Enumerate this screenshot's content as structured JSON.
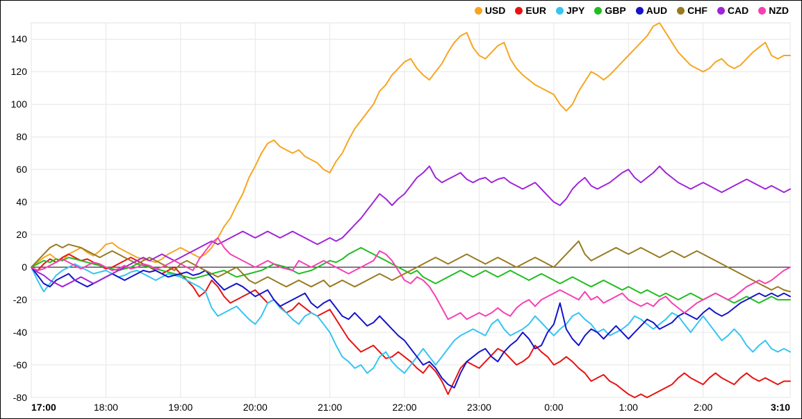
{
  "chart": {
    "type": "line",
    "background_color": "#ffffff",
    "frame_border_color": "#000000",
    "plot_border_color": "#e0e0e0",
    "grid_color": "#e6e6e6",
    "zero_line_color": "#000000",
    "tick_font_size": 14,
    "legend_font_size": 14,
    "line_width": 2,
    "y": {
      "min": -80,
      "max": 150,
      "ticks": [
        -80,
        -60,
        -40,
        -20,
        0,
        20,
        40,
        60,
        80,
        100,
        120,
        140
      ]
    },
    "x": {
      "min_minutes": 1020,
      "max_minutes": 1630,
      "ticks": [
        {
          "minutes": 1020,
          "label": "17:00",
          "bold": true
        },
        {
          "minutes": 1080,
          "label": "18:00",
          "bold": false
        },
        {
          "minutes": 1140,
          "label": "19:00",
          "bold": false
        },
        {
          "minutes": 1200,
          "label": "20:00",
          "bold": false
        },
        {
          "minutes": 1260,
          "label": "21:00",
          "bold": false
        },
        {
          "minutes": 1320,
          "label": "22:00",
          "bold": false
        },
        {
          "minutes": 1380,
          "label": "23:00",
          "bold": false
        },
        {
          "minutes": 1440,
          "label": "0:00",
          "bold": false
        },
        {
          "minutes": 1500,
          "label": "1:00",
          "bold": false
        },
        {
          "minutes": 1560,
          "label": "2:00",
          "bold": false
        },
        {
          "minutes": 1630,
          "label": "3:10",
          "bold": true
        }
      ]
    },
    "x_values_minutes": [
      1020,
      1025,
      1030,
      1035,
      1040,
      1045,
      1050,
      1055,
      1060,
      1065,
      1070,
      1075,
      1080,
      1085,
      1090,
      1095,
      1100,
      1105,
      1110,
      1115,
      1120,
      1125,
      1130,
      1135,
      1140,
      1145,
      1150,
      1155,
      1160,
      1165,
      1170,
      1175,
      1180,
      1185,
      1190,
      1195,
      1200,
      1205,
      1210,
      1215,
      1220,
      1225,
      1230,
      1235,
      1240,
      1245,
      1250,
      1255,
      1260,
      1265,
      1270,
      1275,
      1280,
      1285,
      1290,
      1295,
      1300,
      1305,
      1310,
      1315,
      1320,
      1325,
      1330,
      1335,
      1340,
      1345,
      1350,
      1355,
      1360,
      1365,
      1370,
      1375,
      1380,
      1385,
      1390,
      1395,
      1400,
      1405,
      1410,
      1415,
      1420,
      1425,
      1430,
      1435,
      1440,
      1445,
      1450,
      1455,
      1460,
      1465,
      1470,
      1475,
      1480,
      1485,
      1490,
      1495,
      1500,
      1505,
      1510,
      1515,
      1520,
      1525,
      1530,
      1535,
      1540,
      1545,
      1550,
      1555,
      1560,
      1565,
      1570,
      1575,
      1580,
      1585,
      1590,
      1595,
      1600,
      1605,
      1610,
      1615,
      1620,
      1625,
      1630
    ],
    "series": [
      {
        "label": "USD",
        "color": "#f7a520",
        "values": [
          0,
          3,
          6,
          8,
          5,
          4,
          8,
          10,
          12,
          9,
          7,
          10,
          14,
          15,
          12,
          10,
          8,
          6,
          5,
          4,
          3,
          5,
          8,
          10,
          12,
          10,
          8,
          6,
          8,
          12,
          18,
          25,
          30,
          38,
          45,
          55,
          62,
          70,
          76,
          78,
          74,
          72,
          70,
          72,
          68,
          66,
          64,
          60,
          58,
          65,
          70,
          78,
          85,
          90,
          95,
          100,
          108,
          112,
          118,
          122,
          126,
          128,
          122,
          118,
          115,
          120,
          125,
          132,
          138,
          142,
          144,
          135,
          130,
          128,
          132,
          136,
          138,
          128,
          122,
          118,
          115,
          112,
          110,
          108,
          106,
          100,
          96,
          100,
          108,
          114,
          120,
          118,
          115,
          118,
          122,
          126,
          130,
          134,
          138,
          142,
          148,
          150,
          144,
          138,
          132,
          128,
          124,
          122,
          120,
          122,
          126,
          128,
          124,
          122,
          124,
          128,
          132,
          135,
          138,
          130,
          128,
          130,
          130
        ]
      },
      {
        "label": "EUR",
        "color": "#e81212",
        "values": [
          0,
          -2,
          2,
          5,
          3,
          6,
          8,
          6,
          4,
          5,
          3,
          1,
          -1,
          0,
          2,
          4,
          6,
          4,
          2,
          0,
          -2,
          -4,
          -2,
          0,
          -4,
          -8,
          -12,
          -18,
          -15,
          -8,
          -12,
          -18,
          -22,
          -20,
          -18,
          -16,
          -14,
          -18,
          -22,
          -20,
          -24,
          -28,
          -26,
          -22,
          -25,
          -28,
          -30,
          -28,
          -26,
          -32,
          -38,
          -44,
          -48,
          -52,
          -50,
          -48,
          -52,
          -56,
          -55,
          -52,
          -55,
          -58,
          -62,
          -65,
          -60,
          -64,
          -70,
          -78,
          -70,
          -62,
          -58,
          -60,
          -62,
          -58,
          -54,
          -50,
          -52,
          -56,
          -60,
          -58,
          -55,
          -48,
          -52,
          -55,
          -60,
          -58,
          -55,
          -58,
          -62,
          -65,
          -70,
          -68,
          -66,
          -70,
          -72,
          -75,
          -78,
          -80,
          -78,
          -80,
          -78,
          -76,
          -74,
          -72,
          -68,
          -65,
          -68,
          -70,
          -72,
          -68,
          -65,
          -68,
          -70,
          -72,
          -68,
          -65,
          -68,
          -70,
          -68,
          -70,
          -72,
          -70,
          -70
        ]
      },
      {
        "label": "JPY",
        "color": "#35c4f3",
        "values": [
          0,
          -8,
          -15,
          -10,
          -5,
          -2,
          0,
          2,
          0,
          -2,
          -4,
          -3,
          -2,
          -4,
          -6,
          -5,
          -3,
          -2,
          -4,
          -6,
          -8,
          -6,
          -4,
          -5,
          -6,
          -8,
          -10,
          -12,
          -15,
          -25,
          -30,
          -28,
          -26,
          -24,
          -28,
          -32,
          -35,
          -30,
          -22,
          -20,
          -25,
          -28,
          -32,
          -35,
          -30,
          -28,
          -30,
          -35,
          -40,
          -48,
          -55,
          -58,
          -62,
          -60,
          -65,
          -62,
          -55,
          -52,
          -58,
          -62,
          -65,
          -60,
          -55,
          -50,
          -55,
          -60,
          -55,
          -50,
          -45,
          -42,
          -40,
          -38,
          -40,
          -42,
          -35,
          -32,
          -38,
          -42,
          -40,
          -38,
          -35,
          -30,
          -34,
          -38,
          -42,
          -38,
          -35,
          -30,
          -28,
          -32,
          -35,
          -40,
          -38,
          -42,
          -40,
          -38,
          -35,
          -30,
          -32,
          -35,
          -38,
          -35,
          -32,
          -28,
          -30,
          -35,
          -40,
          -35,
          -30,
          -35,
          -40,
          -45,
          -42,
          -38,
          -42,
          -48,
          -52,
          -48,
          -45,
          -50,
          -52,
          -50,
          -52
        ]
      },
      {
        "label": "GBP",
        "color": "#1fbd1f",
        "values": [
          0,
          2,
          4,
          3,
          5,
          4,
          6,
          5,
          4,
          3,
          2,
          1,
          0,
          -1,
          -2,
          -1,
          0,
          2,
          1,
          0,
          -1,
          -2,
          -3,
          -4,
          -5,
          -6,
          -7,
          -6,
          -5,
          -4,
          -3,
          -2,
          -4,
          -6,
          -5,
          -4,
          -3,
          -2,
          0,
          2,
          1,
          0,
          -2,
          -4,
          -3,
          -2,
          0,
          2,
          4,
          3,
          5,
          8,
          10,
          12,
          10,
          8,
          6,
          4,
          2,
          0,
          -2,
          -4,
          -2,
          -6,
          -8,
          -10,
          -8,
          -6,
          -4,
          -2,
          -4,
          -6,
          -4,
          -2,
          -4,
          -6,
          -4,
          -2,
          -4,
          -6,
          -8,
          -6,
          -4,
          -6,
          -8,
          -10,
          -8,
          -6,
          -8,
          -10,
          -12,
          -10,
          -8,
          -10,
          -12,
          -14,
          -12,
          -14,
          -16,
          -14,
          -16,
          -18,
          -16,
          -18,
          -20,
          -18,
          -16,
          -18,
          -20,
          -18,
          -16,
          -18,
          -20,
          -22,
          -20,
          -18,
          -20,
          -22,
          -20,
          -18,
          -20,
          -20,
          -20
        ]
      },
      {
        "label": "AUD",
        "color": "#1414c8",
        "values": [
          0,
          -5,
          -10,
          -12,
          -8,
          -6,
          -4,
          -8,
          -10,
          -12,
          -10,
          -8,
          -6,
          -4,
          -6,
          -8,
          -6,
          -4,
          -2,
          -3,
          -2,
          -4,
          -6,
          -5,
          -4,
          -3,
          -5,
          -4,
          -2,
          -6,
          -10,
          -14,
          -12,
          -10,
          -12,
          -15,
          -18,
          -16,
          -14,
          -20,
          -24,
          -22,
          -20,
          -18,
          -16,
          -22,
          -25,
          -22,
          -20,
          -25,
          -30,
          -32,
          -28,
          -32,
          -36,
          -34,
          -30,
          -34,
          -38,
          -42,
          -45,
          -50,
          -55,
          -60,
          -58,
          -62,
          -68,
          -72,
          -74,
          -65,
          -58,
          -55,
          -52,
          -50,
          -55,
          -58,
          -52,
          -48,
          -45,
          -40,
          -44,
          -50,
          -48,
          -40,
          -35,
          -22,
          -38,
          -44,
          -48,
          -42,
          -38,
          -40,
          -44,
          -40,
          -36,
          -40,
          -44,
          -40,
          -36,
          -32,
          -34,
          -38,
          -36,
          -34,
          -30,
          -28,
          -30,
          -32,
          -28,
          -25,
          -28,
          -30,
          -28,
          -25,
          -22,
          -20,
          -18,
          -16,
          -18,
          -16,
          -18,
          -16,
          -18
        ]
      },
      {
        "label": "CHF",
        "color": "#987a1f",
        "values": [
          0,
          4,
          8,
          12,
          14,
          12,
          14,
          13,
          12,
          10,
          8,
          6,
          8,
          10,
          8,
          6,
          4,
          2,
          4,
          6,
          4,
          2,
          0,
          -2,
          2,
          4,
          2,
          0,
          -2,
          -4,
          -6,
          -4,
          -2,
          0,
          -4,
          -8,
          -10,
          -8,
          -6,
          -8,
          -10,
          -12,
          -10,
          -8,
          -10,
          -12,
          -10,
          -8,
          -12,
          -10,
          -8,
          -10,
          -12,
          -10,
          -8,
          -6,
          -4,
          -6,
          -8,
          -6,
          -4,
          -2,
          0,
          2,
          4,
          6,
          4,
          2,
          4,
          6,
          8,
          6,
          4,
          2,
          4,
          6,
          4,
          2,
          0,
          2,
          4,
          6,
          4,
          2,
          0,
          4,
          8,
          12,
          16,
          8,
          4,
          6,
          8,
          10,
          12,
          10,
          8,
          10,
          12,
          10,
          8,
          6,
          8,
          10,
          8,
          6,
          8,
          10,
          8,
          6,
          4,
          2,
          0,
          -2,
          -4,
          -6,
          -8,
          -10,
          -12,
          -14,
          -12,
          -14,
          -15
        ]
      },
      {
        "label": "CAD",
        "color": "#9f24d8",
        "values": [
          0,
          -3,
          -5,
          -8,
          -10,
          -12,
          -10,
          -8,
          -6,
          -8,
          -10,
          -8,
          -6,
          -4,
          -2,
          0,
          2,
          4,
          6,
          4,
          6,
          8,
          6,
          4,
          6,
          8,
          10,
          12,
          14,
          16,
          14,
          16,
          18,
          20,
          22,
          20,
          18,
          20,
          22,
          20,
          18,
          20,
          22,
          20,
          18,
          16,
          14,
          16,
          18,
          16,
          18,
          22,
          26,
          30,
          35,
          40,
          45,
          42,
          38,
          42,
          45,
          50,
          55,
          58,
          62,
          55,
          52,
          54,
          56,
          58,
          54,
          52,
          54,
          55,
          52,
          54,
          55,
          52,
          50,
          48,
          50,
          52,
          48,
          44,
          40,
          38,
          42,
          48,
          52,
          55,
          50,
          48,
          50,
          52,
          55,
          58,
          60,
          55,
          52,
          55,
          58,
          62,
          58,
          55,
          52,
          50,
          48,
          50,
          52,
          50,
          48,
          46,
          48,
          50,
          52,
          54,
          52,
          50,
          48,
          50,
          48,
          46,
          48
        ]
      },
      {
        "label": "NZD",
        "color": "#f73fb3",
        "values": [
          0,
          -2,
          -1,
          1,
          3,
          5,
          3,
          1,
          -1,
          1,
          3,
          2,
          0,
          -2,
          -1,
          1,
          -1,
          0,
          2,
          1,
          -1,
          0,
          2,
          4,
          2,
          0,
          -2,
          5,
          10,
          15,
          18,
          12,
          8,
          6,
          4,
          2,
          0,
          2,
          4,
          2,
          0,
          -1,
          -2,
          4,
          2,
          0,
          2,
          4,
          2,
          0,
          -2,
          -4,
          -2,
          0,
          2,
          4,
          10,
          8,
          4,
          -2,
          -8,
          -10,
          -6,
          -8,
          -12,
          -18,
          -25,
          -32,
          -30,
          -28,
          -32,
          -30,
          -28,
          -30,
          -28,
          -25,
          -28,
          -30,
          -25,
          -22,
          -20,
          -24,
          -20,
          -18,
          -16,
          -14,
          -16,
          -18,
          -20,
          -15,
          -20,
          -18,
          -22,
          -20,
          -18,
          -16,
          -20,
          -22,
          -24,
          -22,
          -24,
          -20,
          -18,
          -22,
          -25,
          -28,
          -25,
          -22,
          -20,
          -18,
          -16,
          -18,
          -20,
          -18,
          -15,
          -12,
          -10,
          -8,
          -10,
          -8,
          -5,
          -2,
          0
        ]
      }
    ]
  }
}
